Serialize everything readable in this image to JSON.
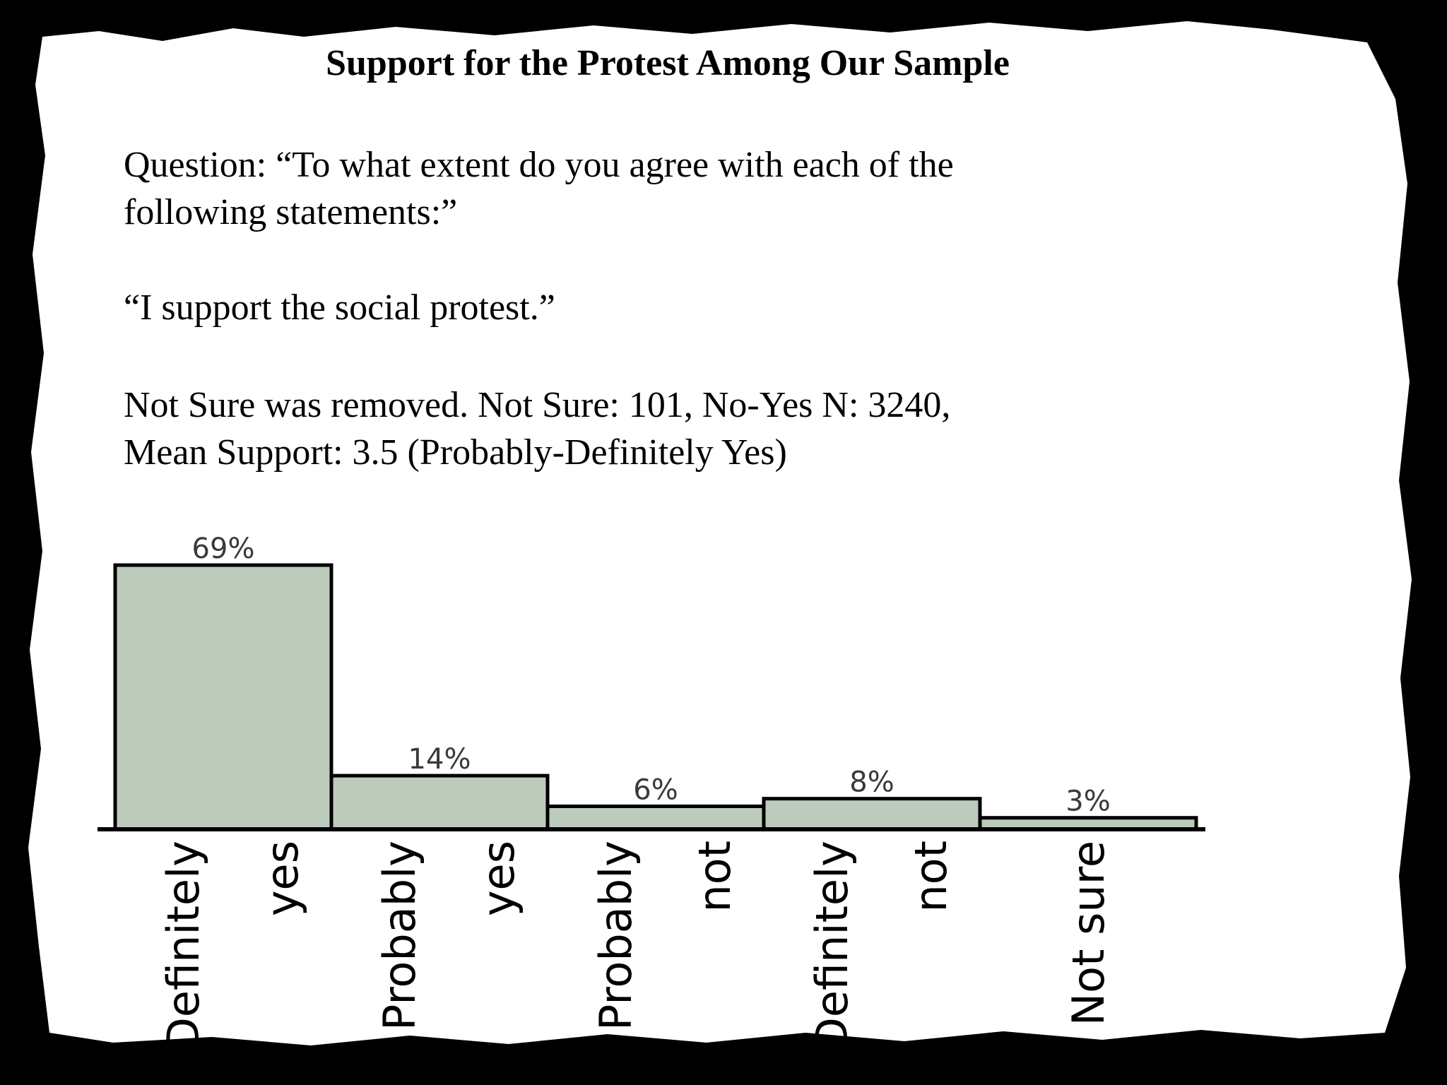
{
  "slide": {
    "title": "Support for the Protest Among Our Sample",
    "question_line1": "Question: “To what extent do you agree with each of the",
    "question_line2": "following statements:”",
    "statement": "“I support the social protest.”",
    "note_line1": "Not Sure was removed. Not Sure: 101, No-Yes N: 3240,",
    "note_line2": "Mean Support: 3.5 (Probably-Definitely Yes)"
  },
  "colors": {
    "bar_fill": "#bccbbb",
    "background": "#ffffff",
    "frame": "#000000"
  },
  "chart_data": {
    "type": "bar",
    "title": "",
    "xlabel": "",
    "ylabel": "",
    "grid": false,
    "categories": [
      [
        "Definitely",
        "yes"
      ],
      [
        "Probably",
        "yes"
      ],
      [
        "Probably",
        "not"
      ],
      [
        "Definitely",
        "not"
      ],
      [
        "Not sure"
      ]
    ],
    "values": [
      69,
      14,
      6,
      8,
      3
    ],
    "data_labels": [
      "69%",
      "14%",
      "6%",
      "8%",
      "3%"
    ],
    "ylim": [
      0,
      69
    ]
  }
}
